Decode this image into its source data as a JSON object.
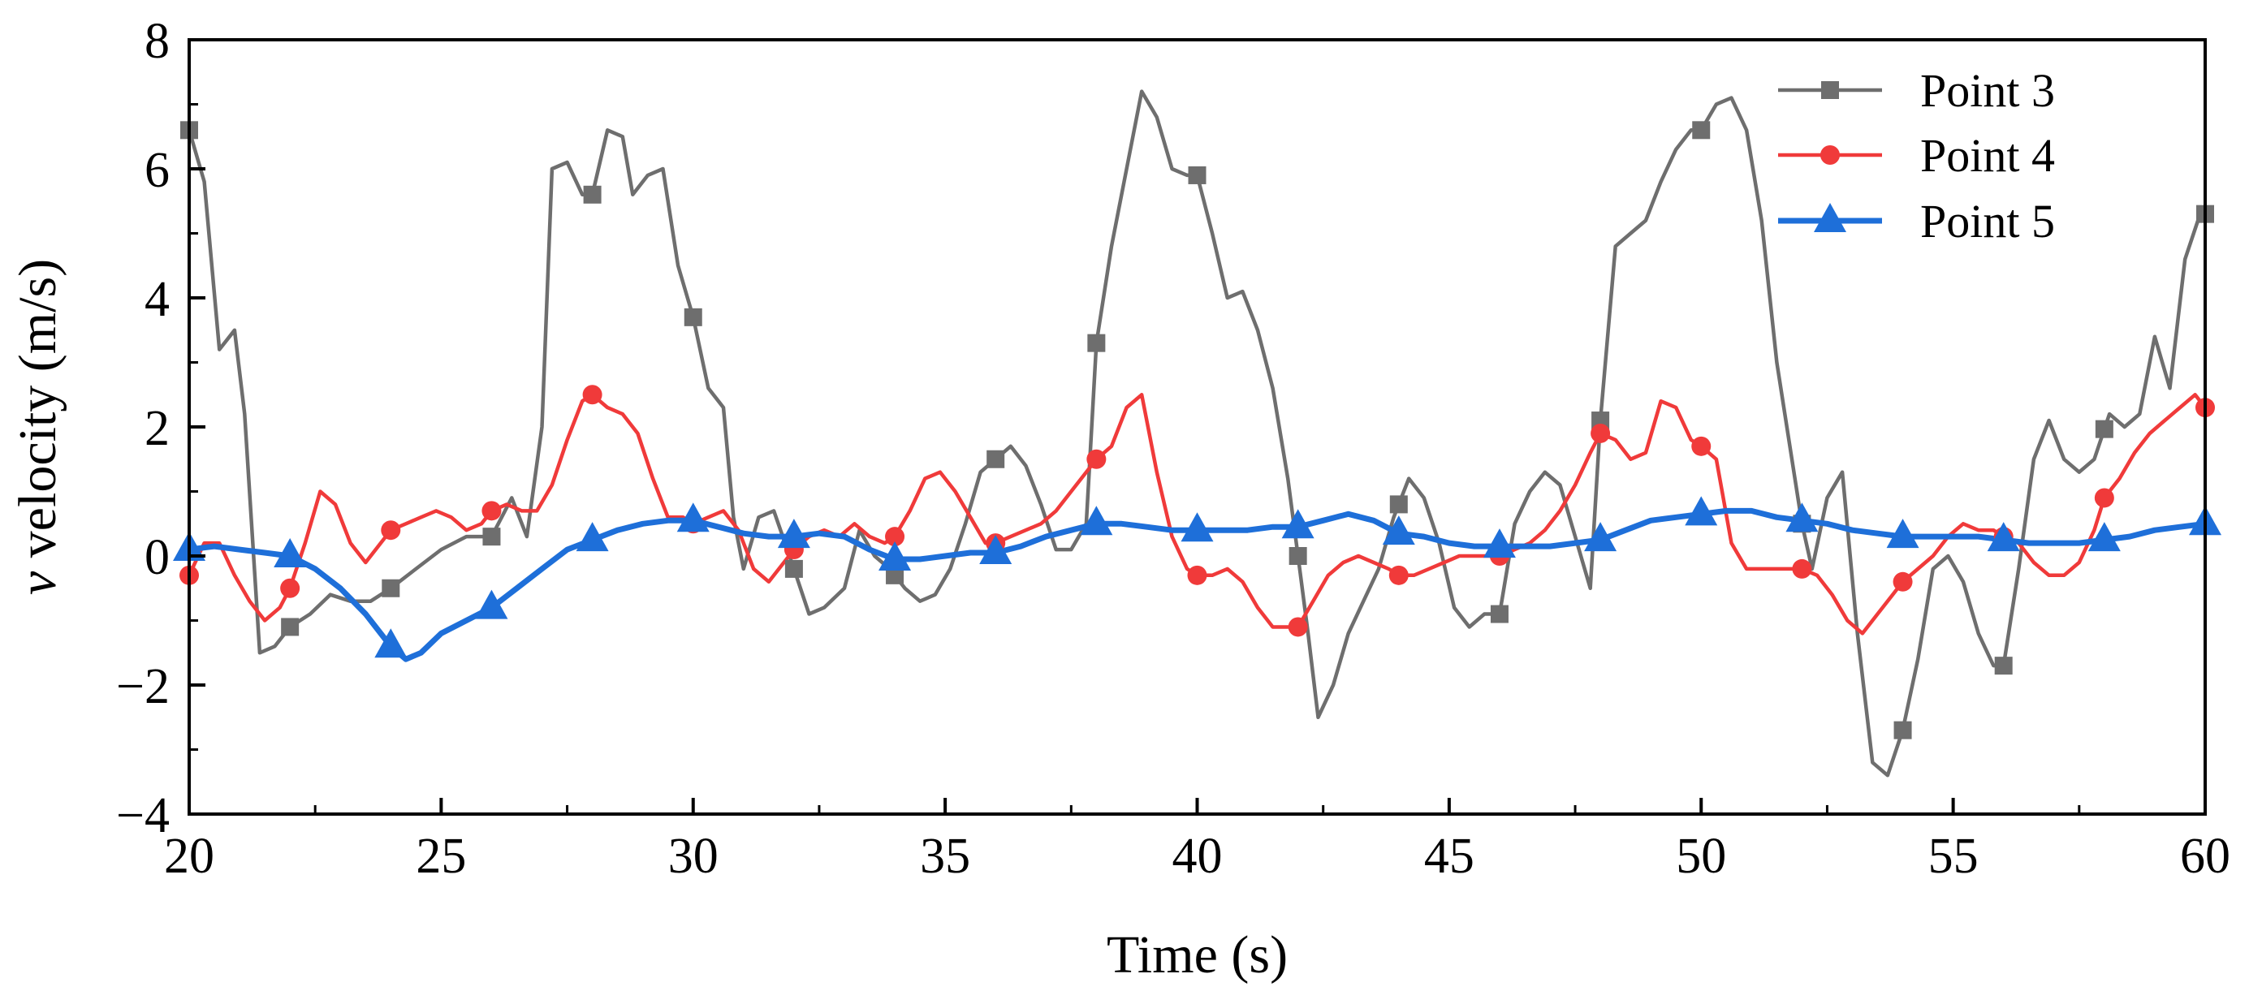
{
  "chart_data": {
    "type": "line",
    "xlabel": "Time (s)",
    "ylabel_italic": "v",
    "ylabel_rest": " velocity (m/s)",
    "xlim": [
      20,
      60
    ],
    "ylim": [
      -4,
      8
    ],
    "x_ticks": [
      20,
      25,
      30,
      35,
      40,
      45,
      50,
      55,
      60
    ],
    "y_ticks": [
      -4,
      -2,
      0,
      2,
      4,
      6,
      8
    ],
    "x_tick_labels": [
      "20",
      "25",
      "30",
      "35",
      "40",
      "45",
      "50",
      "55",
      "60"
    ],
    "y_tick_labels": [
      "−4",
      "−2",
      "0",
      "2",
      "4",
      "6",
      "8"
    ],
    "legend_position": "top-right",
    "series": [
      {
        "name": "Point 3",
        "color": "#6e6e6e",
        "marker": "square",
        "x": [
          20,
          20.3,
          20.6,
          20.9,
          21.1,
          21.4,
          21.7,
          22,
          22.4,
          22.8,
          23.2,
          23.6,
          24,
          24.5,
          25,
          25.5,
          26,
          26.4,
          26.7,
          27,
          27.2,
          27.5,
          27.8,
          28,
          28.3,
          28.6,
          28.8,
          29.1,
          29.4,
          29.7,
          30,
          30.3,
          30.6,
          30.8,
          31,
          31.3,
          31.6,
          32,
          32.3,
          32.6,
          33,
          33.3,
          33.6,
          33.9,
          34.2,
          34.5,
          34.8,
          35.1,
          35.4,
          35.7,
          36,
          36.3,
          36.6,
          36.9,
          37.2,
          37.5,
          37.8,
          38,
          38.3,
          38.6,
          38.9,
          39.2,
          39.5,
          39.8,
          40,
          40.3,
          40.6,
          40.9,
          41.2,
          41.5,
          41.8,
          42,
          42.2,
          42.4,
          42.7,
          43,
          43.3,
          43.6,
          43.9,
          44.2,
          44.5,
          44.8,
          45.1,
          45.4,
          45.7,
          46,
          46.3,
          46.6,
          46.9,
          47.2,
          47.5,
          47.8,
          48,
          48.3,
          48.6,
          48.9,
          49.2,
          49.5,
          49.8,
          50,
          50.3,
          50.6,
          50.9,
          51.2,
          51.5,
          51.8,
          52,
          52.2,
          52.5,
          52.8,
          53.1,
          53.4,
          53.7,
          54,
          54.3,
          54.6,
          54.9,
          55.2,
          55.5,
          55.8,
          56,
          56.3,
          56.6,
          56.9,
          57.2,
          57.5,
          57.8,
          58.1,
          58.4,
          58.7,
          59,
          59.3,
          59.6,
          59.9,
          60
        ],
        "y": [
          6.6,
          5.8,
          3.2,
          3.5,
          2.2,
          -1.5,
          -1.4,
          -1.1,
          -0.9,
          -0.6,
          -0.7,
          -0.7,
          -0.5,
          -0.2,
          0.1,
          0.3,
          0.3,
          0.9,
          0.3,
          2.0,
          6.0,
          6.1,
          5.6,
          5.6,
          6.6,
          6.5,
          5.6,
          5.9,
          6.0,
          4.5,
          3.7,
          2.6,
          2.3,
          0.6,
          -0.2,
          0.6,
          0.7,
          -0.2,
          -0.9,
          -0.8,
          -0.5,
          0.4,
          0.0,
          -0.2,
          -0.5,
          -0.7,
          -0.6,
          -0.2,
          0.5,
          1.3,
          1.5,
          1.7,
          1.4,
          0.8,
          0.1,
          0.1,
          0.5,
          3.3,
          4.8,
          6.0,
          7.2,
          6.8,
          6.0,
          5.9,
          5.9,
          5.0,
          4.0,
          4.1,
          3.5,
          2.6,
          1.2,
          0.0,
          -1.2,
          -2.5,
          -2.0,
          -1.2,
          -0.7,
          -0.2,
          0.6,
          1.2,
          0.9,
          0.2,
          -0.8,
          -1.1,
          -0.9,
          -0.9,
          0.5,
          1.0,
          1.3,
          1.1,
          0.3,
          -0.5,
          2.1,
          4.8,
          5.0,
          5.2,
          5.8,
          6.3,
          6.6,
          6.6,
          7.0,
          7.1,
          6.6,
          5.2,
          3.0,
          1.5,
          0.5,
          -0.2,
          0.9,
          1.3,
          -1.2,
          -3.2,
          -3.4,
          -2.7,
          -1.6,
          -0.2,
          0.0,
          -0.4,
          -1.2,
          -1.7,
          -1.7,
          -0.2,
          1.5,
          2.1,
          1.5,
          1.3,
          1.5,
          2.2,
          2.0,
          2.2,
          3.4,
          2.6,
          4.6,
          5.3,
          5.3
        ],
        "marker_x": [
          20,
          22,
          24,
          26,
          28,
          30,
          32,
          34,
          36,
          38,
          40,
          42,
          44,
          46,
          48,
          50,
          52,
          54,
          56,
          58,
          60
        ]
      },
      {
        "name": "Point 4",
        "color": "#f03a3a",
        "marker": "circle",
        "x": [
          20,
          20.3,
          20.6,
          20.9,
          21.2,
          21.5,
          21.8,
          22,
          22.3,
          22.6,
          22.9,
          23.2,
          23.5,
          23.8,
          24,
          24.3,
          24.6,
          24.9,
          25.2,
          25.5,
          25.8,
          26,
          26.3,
          26.6,
          26.9,
          27.2,
          27.5,
          27.8,
          28,
          28.3,
          28.6,
          28.9,
          29.2,
          29.5,
          29.8,
          30,
          30.3,
          30.6,
          30.9,
          31.2,
          31.5,
          31.8,
          32,
          32.3,
          32.6,
          32.9,
          33.2,
          33.5,
          33.8,
          34,
          34.3,
          34.6,
          34.9,
          35.2,
          35.5,
          35.8,
          36,
          36.3,
          36.6,
          36.9,
          37.2,
          37.5,
          37.8,
          38,
          38.3,
          38.6,
          38.9,
          39.2,
          39.5,
          39.8,
          40,
          40.3,
          40.6,
          40.9,
          41.2,
          41.5,
          41.8,
          42,
          42.3,
          42.6,
          42.9,
          43.2,
          43.5,
          43.8,
          44,
          44.3,
          44.6,
          44.9,
          45.2,
          45.5,
          45.8,
          46,
          46.3,
          46.6,
          46.9,
          47.2,
          47.5,
          47.8,
          48,
          48.3,
          48.6,
          48.9,
          49.2,
          49.5,
          49.8,
          50,
          50.3,
          50.6,
          50.9,
          51.2,
          51.5,
          51.8,
          52,
          52.3,
          52.6,
          52.9,
          53.2,
          53.5,
          53.8,
          54,
          54.3,
          54.6,
          54.9,
          55.2,
          55.5,
          55.8,
          56,
          56.3,
          56.6,
          56.9,
          57.2,
          57.5,
          57.8,
          58,
          58.3,
          58.6,
          58.9,
          59.2,
          59.5,
          59.8,
          60
        ],
        "y": [
          -0.3,
          0.2,
          0.2,
          -0.3,
          -0.7,
          -1.0,
          -0.8,
          -0.5,
          0.2,
          1.0,
          0.8,
          0.2,
          -0.1,
          0.2,
          0.4,
          0.5,
          0.6,
          0.7,
          0.6,
          0.4,
          0.5,
          0.7,
          0.8,
          0.7,
          0.7,
          1.1,
          1.8,
          2.4,
          2.5,
          2.3,
          2.2,
          1.9,
          1.2,
          0.6,
          0.6,
          0.5,
          0.6,
          0.7,
          0.4,
          -0.2,
          -0.4,
          -0.1,
          0.1,
          0.3,
          0.4,
          0.3,
          0.5,
          0.3,
          0.2,
          0.3,
          0.7,
          1.2,
          1.3,
          1.0,
          0.6,
          0.2,
          0.2,
          0.3,
          0.4,
          0.5,
          0.7,
          1.0,
          1.3,
          1.5,
          1.7,
          2.3,
          2.5,
          1.3,
          0.3,
          -0.2,
          -0.3,
          -0.3,
          -0.2,
          -0.4,
          -0.8,
          -1.1,
          -1.1,
          -1.1,
          -0.7,
          -0.3,
          -0.1,
          0.0,
          -0.1,
          -0.2,
          -0.3,
          -0.3,
          -0.2,
          -0.1,
          0.0,
          0.0,
          0.0,
          0.0,
          0.1,
          0.2,
          0.4,
          0.7,
          1.1,
          1.6,
          1.9,
          1.8,
          1.5,
          1.6,
          2.4,
          2.3,
          1.8,
          1.7,
          1.5,
          0.2,
          -0.2,
          -0.2,
          -0.2,
          -0.2,
          -0.2,
          -0.3,
          -0.6,
          -1.0,
          -1.2,
          -0.9,
          -0.6,
          -0.4,
          -0.2,
          0.0,
          0.3,
          0.5,
          0.4,
          0.4,
          0.3,
          0.2,
          -0.1,
          -0.3,
          -0.3,
          -0.1,
          0.4,
          0.9,
          1.2,
          1.6,
          1.9,
          2.1,
          2.3,
          2.5,
          2.3
        ],
        "marker_x": [
          20,
          22,
          24,
          26,
          28,
          30,
          32,
          34,
          36,
          38,
          40,
          42,
          44,
          46,
          48,
          50,
          52,
          54,
          56,
          58,
          60
        ]
      },
      {
        "name": "Point 5",
        "color": "#1e6fd9",
        "marker": "triangle",
        "x": [
          20,
          20.5,
          21,
          21.5,
          22,
          22.5,
          23,
          23.5,
          24,
          24.3,
          24.6,
          25,
          25.5,
          26,
          26.5,
          27,
          27.5,
          28,
          28.5,
          29,
          29.5,
          30,
          30.5,
          31,
          31.5,
          32,
          32.5,
          33,
          33.5,
          34,
          34.5,
          35,
          35.5,
          36,
          36.5,
          37,
          37.5,
          38,
          38.5,
          39,
          39.5,
          40,
          40.5,
          41,
          41.5,
          42,
          42.5,
          43,
          43.5,
          44,
          44.5,
          45,
          45.5,
          46,
          46.5,
          47,
          47.5,
          48,
          48.5,
          49,
          49.5,
          50,
          50.5,
          51,
          51.5,
          52,
          52.5,
          53,
          53.5,
          54,
          54.5,
          55,
          55.5,
          56,
          56.5,
          57,
          57.5,
          58,
          58.5,
          59,
          59.5,
          60
        ],
        "y": [
          0.1,
          0.15,
          0.1,
          0.05,
          0.0,
          -0.2,
          -0.5,
          -0.9,
          -1.4,
          -1.6,
          -1.5,
          -1.2,
          -1.0,
          -0.8,
          -0.5,
          -0.2,
          0.1,
          0.25,
          0.4,
          0.5,
          0.55,
          0.55,
          0.45,
          0.35,
          0.3,
          0.3,
          0.35,
          0.3,
          0.1,
          -0.05,
          -0.05,
          0.0,
          0.05,
          0.05,
          0.15,
          0.3,
          0.4,
          0.5,
          0.5,
          0.45,
          0.4,
          0.4,
          0.4,
          0.4,
          0.45,
          0.45,
          0.55,
          0.65,
          0.55,
          0.35,
          0.3,
          0.2,
          0.15,
          0.15,
          0.15,
          0.15,
          0.2,
          0.25,
          0.4,
          0.55,
          0.6,
          0.65,
          0.7,
          0.7,
          0.6,
          0.55,
          0.5,
          0.4,
          0.35,
          0.3,
          0.3,
          0.3,
          0.3,
          0.25,
          0.2,
          0.2,
          0.2,
          0.25,
          0.3,
          0.4,
          0.45,
          0.5
        ],
        "marker_x": [
          20,
          22,
          24,
          26,
          28,
          30,
          32,
          34,
          36,
          38,
          40,
          42,
          44,
          46,
          48,
          50,
          52,
          54,
          56,
          58,
          60
        ]
      }
    ]
  }
}
